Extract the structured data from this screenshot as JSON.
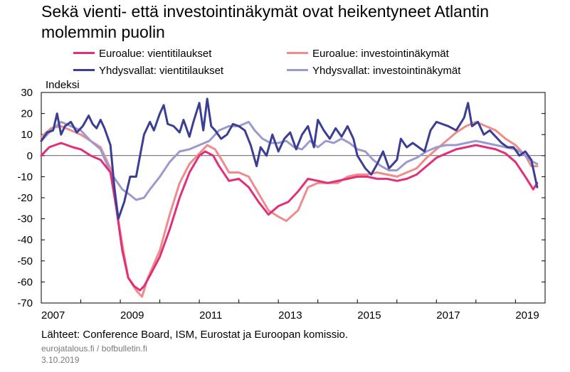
{
  "title": "Sekä vienti- että investointinäkymät ovat heikentyneet Atlantin molemmin puolin",
  "unit_label": "Indeksi",
  "source": "Lähteet: Conference Board, ISM, Eurostat ja Euroopan komissio.",
  "credit": "eurojatalous.fi / bofbulletin.fi",
  "date": "3.10.2019",
  "chart_data": {
    "type": "line",
    "title": "Sekä vienti- että investointinäkymät ovat heikentyneet Atlantin molemmin puolin",
    "ylabel": "Indeksi",
    "xlabel": "",
    "ylim": [
      -70,
      30
    ],
    "yticks": [
      30,
      20,
      10,
      0,
      -10,
      -20,
      -30,
      -40,
      -50,
      -60,
      -70
    ],
    "xlim": [
      2007,
      2019.75
    ],
    "xticks": [
      "2007",
      "2009",
      "2011",
      "2013",
      "2015",
      "2017",
      "2019"
    ],
    "grid": false,
    "legend": "top",
    "series": [
      {
        "name": "Euroalue: vientitilaukset",
        "color": "#e0307a",
        "points": [
          [
            2007.0,
            0
          ],
          [
            2007.2,
            4
          ],
          [
            2007.5,
            6
          ],
          [
            2007.8,
            4
          ],
          [
            2008.0,
            3
          ],
          [
            2008.25,
            0
          ],
          [
            2008.5,
            -2
          ],
          [
            2008.75,
            -8
          ],
          [
            2008.9,
            -25
          ],
          [
            2009.05,
            -45
          ],
          [
            2009.2,
            -58
          ],
          [
            2009.35,
            -62
          ],
          [
            2009.5,
            -64
          ],
          [
            2009.6,
            -62
          ],
          [
            2009.75,
            -57
          ],
          [
            2010.0,
            -48
          ],
          [
            2010.25,
            -35
          ],
          [
            2010.5,
            -20
          ],
          [
            2010.75,
            -8
          ],
          [
            2011.0,
            0
          ],
          [
            2011.15,
            2
          ],
          [
            2011.35,
            0
          ],
          [
            2011.5,
            -5
          ],
          [
            2011.75,
            -12
          ],
          [
            2012.0,
            -11
          ],
          [
            2012.25,
            -15
          ],
          [
            2012.5,
            -22
          ],
          [
            2012.75,
            -28
          ],
          [
            2013.0,
            -24
          ],
          [
            2013.25,
            -22
          ],
          [
            2013.5,
            -17
          ],
          [
            2013.75,
            -11
          ],
          [
            2014.0,
            -12
          ],
          [
            2014.25,
            -13
          ],
          [
            2014.5,
            -12
          ],
          [
            2014.75,
            -11
          ],
          [
            2015.0,
            -10
          ],
          [
            2015.25,
            -10
          ],
          [
            2015.5,
            -11
          ],
          [
            2015.75,
            -11
          ],
          [
            2016.0,
            -12
          ],
          [
            2016.25,
            -11
          ],
          [
            2016.5,
            -9
          ],
          [
            2016.75,
            -5
          ],
          [
            2017.0,
            -1
          ],
          [
            2017.25,
            1
          ],
          [
            2017.5,
            3
          ],
          [
            2017.75,
            4
          ],
          [
            2018.0,
            5
          ],
          [
            2018.25,
            4
          ],
          [
            2018.5,
            3
          ],
          [
            2018.75,
            1
          ],
          [
            2019.0,
            -3
          ],
          [
            2019.25,
            -10
          ],
          [
            2019.45,
            -16
          ],
          [
            2019.55,
            -13
          ]
        ]
      },
      {
        "name": "Euroalue: investointinäkymät",
        "color": "#f08b8b",
        "points": [
          [
            2007.0,
            9
          ],
          [
            2007.25,
            13
          ],
          [
            2007.5,
            14
          ],
          [
            2007.75,
            12
          ],
          [
            2008.0,
            10
          ],
          [
            2008.25,
            7
          ],
          [
            2008.5,
            4
          ],
          [
            2008.75,
            -6
          ],
          [
            2008.9,
            -25
          ],
          [
            2009.05,
            -42
          ],
          [
            2009.2,
            -58
          ],
          [
            2009.4,
            -64
          ],
          [
            2009.55,
            -67
          ],
          [
            2009.7,
            -58
          ],
          [
            2010.0,
            -45
          ],
          [
            2010.25,
            -28
          ],
          [
            2010.5,
            -13
          ],
          [
            2010.75,
            -4
          ],
          [
            2011.0,
            1
          ],
          [
            2011.2,
            5
          ],
          [
            2011.4,
            3
          ],
          [
            2011.6,
            -3
          ],
          [
            2011.75,
            -8
          ],
          [
            2012.0,
            -8
          ],
          [
            2012.25,
            -10
          ],
          [
            2012.5,
            -18
          ],
          [
            2012.75,
            -26
          ],
          [
            2013.0,
            -29
          ],
          [
            2013.2,
            -31
          ],
          [
            2013.5,
            -26
          ],
          [
            2013.75,
            -15
          ],
          [
            2014.0,
            -13
          ],
          [
            2014.25,
            -13
          ],
          [
            2014.5,
            -13
          ],
          [
            2014.75,
            -10
          ],
          [
            2015.0,
            -9
          ],
          [
            2015.25,
            -9
          ],
          [
            2015.5,
            -8
          ],
          [
            2015.75,
            -9
          ],
          [
            2016.0,
            -10
          ],
          [
            2016.25,
            -8
          ],
          [
            2016.5,
            -6
          ],
          [
            2016.75,
            -1
          ],
          [
            2017.0,
            3
          ],
          [
            2017.25,
            7
          ],
          [
            2017.5,
            11
          ],
          [
            2017.75,
            14
          ],
          [
            2018.0,
            16
          ],
          [
            2018.25,
            14
          ],
          [
            2018.5,
            12
          ],
          [
            2018.75,
            8
          ],
          [
            2019.0,
            5
          ],
          [
            2019.25,
            0
          ],
          [
            2019.4,
            -5
          ],
          [
            2019.55,
            -5
          ]
        ]
      },
      {
        "name": "Yhdysvallat: vientitilaukset",
        "color": "#3b3f94",
        "points": [
          [
            2007.0,
            7
          ],
          [
            2007.15,
            11
          ],
          [
            2007.3,
            12
          ],
          [
            2007.4,
            20
          ],
          [
            2007.5,
            10
          ],
          [
            2007.6,
            14
          ],
          [
            2007.75,
            16
          ],
          [
            2007.9,
            11
          ],
          [
            2008.05,
            14
          ],
          [
            2008.2,
            19
          ],
          [
            2008.3,
            15
          ],
          [
            2008.4,
            13
          ],
          [
            2008.5,
            17
          ],
          [
            2008.6,
            13
          ],
          [
            2008.75,
            5
          ],
          [
            2008.85,
            -15
          ],
          [
            2008.95,
            -30
          ],
          [
            2009.1,
            -22
          ],
          [
            2009.25,
            -10
          ],
          [
            2009.4,
            -10
          ],
          [
            2009.5,
            0
          ],
          [
            2009.6,
            10
          ],
          [
            2009.75,
            16
          ],
          [
            2009.85,
            12
          ],
          [
            2010.0,
            20
          ],
          [
            2010.1,
            24
          ],
          [
            2010.2,
            15
          ],
          [
            2010.35,
            14
          ],
          [
            2010.5,
            11
          ],
          [
            2010.6,
            17
          ],
          [
            2010.75,
            9
          ],
          [
            2010.85,
            16
          ],
          [
            2011.0,
            25
          ],
          [
            2011.1,
            12
          ],
          [
            2011.2,
            27
          ],
          [
            2011.3,
            14
          ],
          [
            2011.4,
            12
          ],
          [
            2011.55,
            8
          ],
          [
            2011.7,
            10
          ],
          [
            2011.85,
            15
          ],
          [
            2012.0,
            14
          ],
          [
            2012.15,
            12
          ],
          [
            2012.3,
            5
          ],
          [
            2012.45,
            -5
          ],
          [
            2012.55,
            4
          ],
          [
            2012.7,
            0
          ],
          [
            2012.85,
            10
          ],
          [
            2013.0,
            2
          ],
          [
            2013.15,
            8
          ],
          [
            2013.3,
            11
          ],
          [
            2013.45,
            3
          ],
          [
            2013.6,
            10
          ],
          [
            2013.75,
            14
          ],
          [
            2013.9,
            4
          ],
          [
            2014.0,
            17
          ],
          [
            2014.15,
            12
          ],
          [
            2014.3,
            8
          ],
          [
            2014.45,
            13
          ],
          [
            2014.6,
            9
          ],
          [
            2014.75,
            14
          ],
          [
            2014.9,
            8
          ],
          [
            2015.0,
            0
          ],
          [
            2015.2,
            -6
          ],
          [
            2015.35,
            -9
          ],
          [
            2015.5,
            -4
          ],
          [
            2015.65,
            2
          ],
          [
            2015.8,
            -6
          ],
          [
            2016.0,
            -2
          ],
          [
            2016.1,
            8
          ],
          [
            2016.25,
            4
          ],
          [
            2016.4,
            6
          ],
          [
            2016.55,
            4
          ],
          [
            2016.7,
            2
          ],
          [
            2016.85,
            12
          ],
          [
            2017.0,
            16
          ],
          [
            2017.15,
            15
          ],
          [
            2017.3,
            14
          ],
          [
            2017.5,
            12
          ],
          [
            2017.7,
            18
          ],
          [
            2017.8,
            25
          ],
          [
            2017.9,
            14
          ],
          [
            2018.05,
            16
          ],
          [
            2018.2,
            10
          ],
          [
            2018.35,
            12
          ],
          [
            2018.5,
            9
          ],
          [
            2018.65,
            6
          ],
          [
            2018.8,
            4
          ],
          [
            2018.95,
            4
          ],
          [
            2019.1,
            0
          ],
          [
            2019.25,
            2
          ],
          [
            2019.4,
            -2
          ],
          [
            2019.55,
            -15
          ]
        ]
      },
      {
        "name": "Yhdysvallat: investointinäkymät",
        "color": "#9a9ad0",
        "points": [
          [
            2007.0,
            7
          ],
          [
            2007.25,
            12
          ],
          [
            2007.5,
            16
          ],
          [
            2007.75,
            14
          ],
          [
            2008.0,
            12
          ],
          [
            2008.25,
            7
          ],
          [
            2008.5,
            3
          ],
          [
            2008.75,
            -8
          ],
          [
            2008.9,
            -12
          ],
          [
            2009.05,
            -16
          ],
          [
            2009.2,
            -18
          ],
          [
            2009.4,
            -21
          ],
          [
            2009.6,
            -20
          ],
          [
            2009.75,
            -16
          ],
          [
            2010.0,
            -10
          ],
          [
            2010.25,
            -3
          ],
          [
            2010.5,
            2
          ],
          [
            2010.75,
            3
          ],
          [
            2011.0,
            5
          ],
          [
            2011.25,
            7
          ],
          [
            2011.5,
            12
          ],
          [
            2011.75,
            14
          ],
          [
            2012.0,
            14
          ],
          [
            2012.25,
            16
          ],
          [
            2012.4,
            12
          ],
          [
            2012.6,
            8
          ],
          [
            2012.8,
            6
          ],
          [
            2013.0,
            6
          ],
          [
            2013.2,
            7
          ],
          [
            2013.4,
            4
          ],
          [
            2013.6,
            3
          ],
          [
            2013.8,
            7
          ],
          [
            2014.0,
            4
          ],
          [
            2014.2,
            7
          ],
          [
            2014.4,
            6
          ],
          [
            2014.6,
            8
          ],
          [
            2014.8,
            6
          ],
          [
            2015.0,
            3
          ],
          [
            2015.2,
            2
          ],
          [
            2015.4,
            -2
          ],
          [
            2015.6,
            -5
          ],
          [
            2015.8,
            -7
          ],
          [
            2016.0,
            -7
          ],
          [
            2016.25,
            -3
          ],
          [
            2016.5,
            -1
          ],
          [
            2016.75,
            2
          ],
          [
            2017.0,
            4
          ],
          [
            2017.25,
            5
          ],
          [
            2017.5,
            5
          ],
          [
            2017.75,
            6
          ],
          [
            2018.0,
            7
          ],
          [
            2018.25,
            6
          ],
          [
            2018.5,
            5
          ],
          [
            2018.75,
            4
          ],
          [
            2019.0,
            3
          ],
          [
            2019.2,
            1
          ],
          [
            2019.35,
            -2
          ],
          [
            2019.55,
            -4
          ]
        ]
      }
    ]
  }
}
